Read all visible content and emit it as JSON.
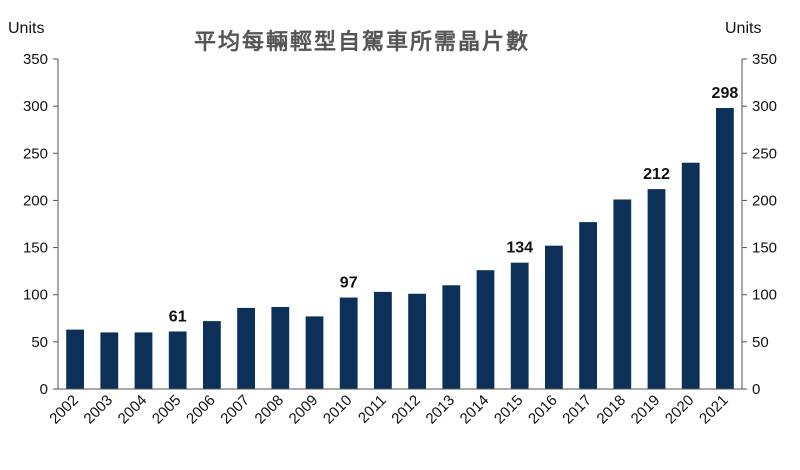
{
  "chart_data": {
    "type": "bar",
    "title": "平均每輛輕型自駕車所需晶片數",
    "ylabel_left": "Units",
    "ylabel_right": "Units",
    "ylim": [
      0,
      350
    ],
    "yticks": [
      0,
      50,
      100,
      150,
      200,
      250,
      300,
      350
    ],
    "categories": [
      "2002",
      "2003",
      "2004",
      "2005",
      "2006",
      "2007",
      "2008",
      "2009",
      "2010",
      "2011",
      "2012",
      "2013",
      "2014",
      "2015",
      "2016",
      "2017",
      "2018",
      "2019",
      "2020",
      "2021"
    ],
    "values": [
      63,
      60,
      60,
      61,
      72,
      86,
      87,
      77,
      97,
      103,
      101,
      110,
      126,
      134,
      152,
      177,
      201,
      212,
      240,
      298
    ],
    "data_labels": [
      {
        "category": "2005",
        "text": "61"
      },
      {
        "category": "2010",
        "text": "97"
      },
      {
        "category": "2015",
        "text": "134"
      },
      {
        "category": "2019",
        "text": "212"
      },
      {
        "category": "2021",
        "text": "298"
      }
    ],
    "bar_color": "#0d3059",
    "grid": false,
    "legend": "none"
  }
}
